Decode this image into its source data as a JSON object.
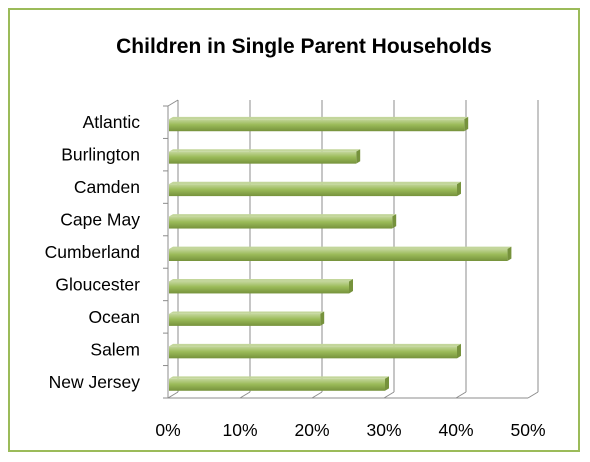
{
  "chart_data": {
    "type": "bar",
    "orientation": "horizontal",
    "title": "Children in Single Parent Households",
    "categories": [
      "Atlantic",
      "Burlington",
      "Camden",
      "Cape May",
      "Cumberland",
      "Gloucester",
      "Ocean",
      "Salem",
      "New Jersey"
    ],
    "values": [
      0.41,
      0.26,
      0.4,
      0.31,
      0.47,
      0.25,
      0.21,
      0.4,
      0.3
    ],
    "xlim": [
      0,
      0.5
    ],
    "x_ticks": [
      0,
      0.1,
      0.2,
      0.3,
      0.4,
      0.5
    ],
    "x_tick_labels": [
      "0%",
      "10%",
      "20%",
      "30%",
      "40%",
      "50%"
    ],
    "grid": "vertical",
    "legend": "none",
    "xlabel": "",
    "ylabel": ""
  },
  "colors": {
    "bar_fill": "#9bbb59",
    "bar_light": "#c3d69b",
    "bar_dark": "#76923c",
    "frame_border": "#9bbb59",
    "grid": "#8c8c8c"
  }
}
